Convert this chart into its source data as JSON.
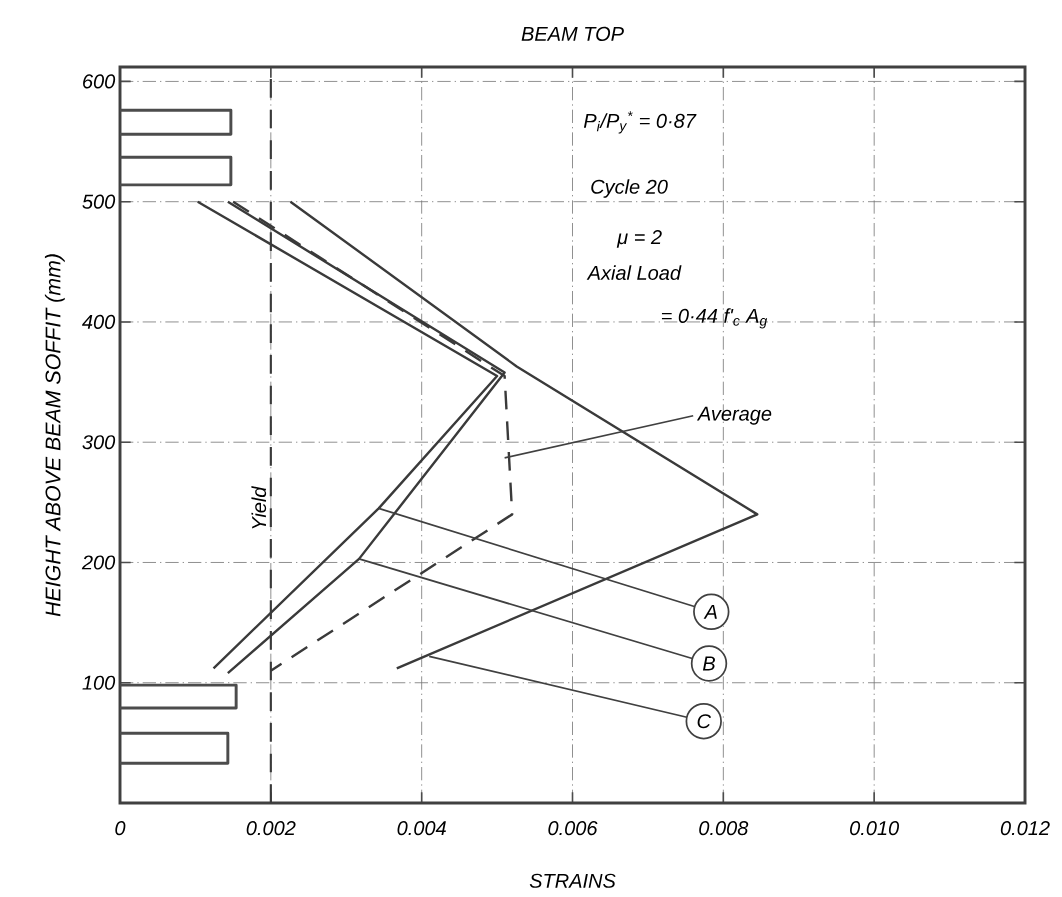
{
  "chart_data": {
    "type": "line",
    "title": "BEAM TOP",
    "xlabel": "STRAINS",
    "ylabel": "HEIGHT ABOVE BEAM SOFFIT (mm)",
    "xlim": [
      0,
      0.012
    ],
    "ylim": [
      0,
      612
    ],
    "xticks": [
      0,
      0.002,
      0.004,
      0.006,
      0.008,
      {
        "value": 0.01,
        "label": "0.010"
      },
      0.012
    ],
    "yticks": [
      100,
      200,
      300,
      400,
      500,
      600
    ],
    "grid": true,
    "marker": "none",
    "series": [
      {
        "color": "#3a3a3a",
        "line_style": "solid",
        "x": [
          0.00103,
          0.005,
          0.00343,
          0.00124
        ],
        "values": [
          500,
          355,
          245,
          112
        ]
      },
      {
        "color": "#3a3a3a",
        "line_style": "solid",
        "x": [
          0.00143,
          0.0051,
          0.00317,
          0.00143
        ],
        "values": [
          500,
          358,
          203,
          108
        ]
      },
      {
        "color": "#3a3a3a",
        "line_style": "solid",
        "x": [
          0.00226,
          0.00526,
          0.00845,
          0.00367
        ],
        "values": [
          500,
          363,
          240,
          112
        ]
      },
      {
        "color": "#3a3a3a",
        "line_style": "dashed",
        "x": [
          0.0015,
          0.0051,
          0.0052,
          0.002
        ],
        "values": [
          500,
          355,
          240,
          110
        ]
      }
    ],
    "ref_lines": [
      {
        "axis": "x",
        "value": 0.002,
        "label": "Yield",
        "line_style": "dashed",
        "color": "#3a3a3a"
      }
    ],
    "annotations": [
      "P$_{i}$/P$_{y}$$^{*}$ = 0·87",
      "Cycle 20",
      "μ = 2",
      "Axial Load",
      "= 0·44 f'$_{c}$ A$_{g}$",
      {
        "text": "Average",
        "x": 0.0051,
        "y": 287
      },
      {
        "text": "A",
        "x": 0.00343,
        "y": 245
      },
      {
        "text": "B",
        "x": 0.00317,
        "y": 203
      },
      {
        "text": "C",
        "x": 0.0041,
        "y": 122
      }
    ]
  }
}
